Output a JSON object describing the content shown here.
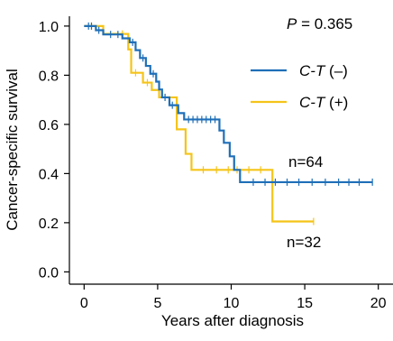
{
  "chart_data": {
    "type": "line",
    "subtype": "kaplan-meier",
    "title": "",
    "xlabel": "Years after diagnosis",
    "ylabel": "Cancer-specific survival",
    "xlim": [
      -1,
      21
    ],
    "ylim": [
      -0.05,
      1.04
    ],
    "xticks": [
      0,
      5,
      10,
      15,
      20
    ],
    "yticks": [
      0.0,
      0.2,
      0.4,
      0.6,
      0.8,
      1.0
    ],
    "grid": false,
    "legend_position": "upper-right",
    "p_value": {
      "italic": "P",
      "rest": " = 0.365"
    },
    "series": [
      {
        "name": "C-T (−)",
        "label_italic": "C-T",
        "label_rest": " (–)",
        "color": "#1f6fb8",
        "n_label": "n=64",
        "steps": [
          [
            0,
            1.0
          ],
          [
            0.8,
            0.983
          ],
          [
            1.3,
            0.966
          ],
          [
            2.6,
            0.95
          ],
          [
            3.1,
            0.934
          ],
          [
            3.5,
            0.902
          ],
          [
            3.8,
            0.87
          ],
          [
            4.2,
            0.838
          ],
          [
            4.5,
            0.806
          ],
          [
            4.9,
            0.774
          ],
          [
            5.1,
            0.742
          ],
          [
            5.3,
            0.71
          ],
          [
            5.8,
            0.678
          ],
          [
            6.4,
            0.646
          ],
          [
            6.8,
            0.62
          ],
          [
            9.2,
            0.575
          ],
          [
            9.5,
            0.525
          ],
          [
            9.9,
            0.47
          ],
          [
            10.2,
            0.415
          ],
          [
            10.6,
            0.365
          ],
          [
            19.6,
            0.365
          ]
        ],
        "censored": [
          [
            0.3,
            1.0
          ],
          [
            0.5,
            1.0
          ],
          [
            1.0,
            0.983
          ],
          [
            1.8,
            0.966
          ],
          [
            2.3,
            0.966
          ],
          [
            3.3,
            0.934
          ],
          [
            4.0,
            0.87
          ],
          [
            4.7,
            0.806
          ],
          [
            5.5,
            0.71
          ],
          [
            6.0,
            0.678
          ],
          [
            7.1,
            0.62
          ],
          [
            7.4,
            0.62
          ],
          [
            7.7,
            0.62
          ],
          [
            8.0,
            0.62
          ],
          [
            8.3,
            0.62
          ],
          [
            8.6,
            0.62
          ],
          [
            8.9,
            0.62
          ],
          [
            11.5,
            0.365
          ],
          [
            12.3,
            0.365
          ],
          [
            13.0,
            0.365
          ],
          [
            13.8,
            0.365
          ],
          [
            14.6,
            0.365
          ],
          [
            15.5,
            0.365
          ],
          [
            16.4,
            0.365
          ],
          [
            17.3,
            0.365
          ],
          [
            18.0,
            0.365
          ],
          [
            18.7,
            0.365
          ],
          [
            19.6,
            0.365
          ]
        ]
      },
      {
        "name": "C-T (+)",
        "label_italic": "C-T",
        "label_rest": " (+)",
        "color": "#f5c419",
        "n_label": "n=32",
        "steps": [
          [
            0,
            1.0
          ],
          [
            1.3,
            0.968
          ],
          [
            3.0,
            0.905
          ],
          [
            3.2,
            0.81
          ],
          [
            4.0,
            0.77
          ],
          [
            4.6,
            0.74
          ],
          [
            5.1,
            0.71
          ],
          [
            5.9,
            0.71
          ],
          [
            6.3,
            0.58
          ],
          [
            6.9,
            0.48
          ],
          [
            7.3,
            0.415
          ],
          [
            12.8,
            0.205
          ],
          [
            15.6,
            0.205
          ]
        ],
        "censored": [
          [
            0.5,
            1.0
          ],
          [
            2.6,
            0.968
          ],
          [
            3.5,
            0.81
          ],
          [
            4.3,
            0.77
          ],
          [
            5.5,
            0.71
          ],
          [
            8.1,
            0.415
          ],
          [
            9.0,
            0.415
          ],
          [
            9.8,
            0.415
          ],
          [
            10.4,
            0.415
          ],
          [
            11.2,
            0.415
          ],
          [
            12.0,
            0.415
          ],
          [
            15.6,
            0.205
          ]
        ]
      }
    ]
  }
}
